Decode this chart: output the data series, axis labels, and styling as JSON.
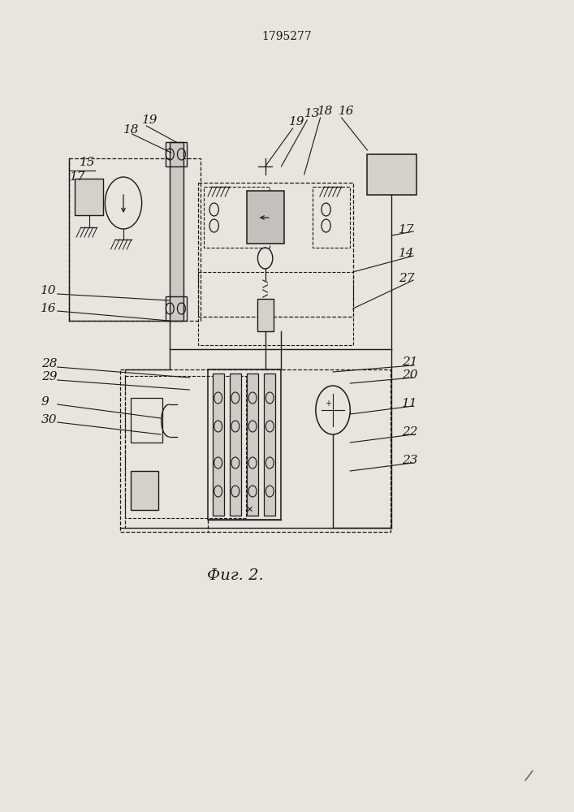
{
  "title": "1795277",
  "fig_label": "Фиг. 2.",
  "bg_color": "#e8e4de",
  "line_color": "#1a1a1a",
  "title_fontsize": 10,
  "fig_label_fontsize": 14,
  "label_fontsize": 11
}
